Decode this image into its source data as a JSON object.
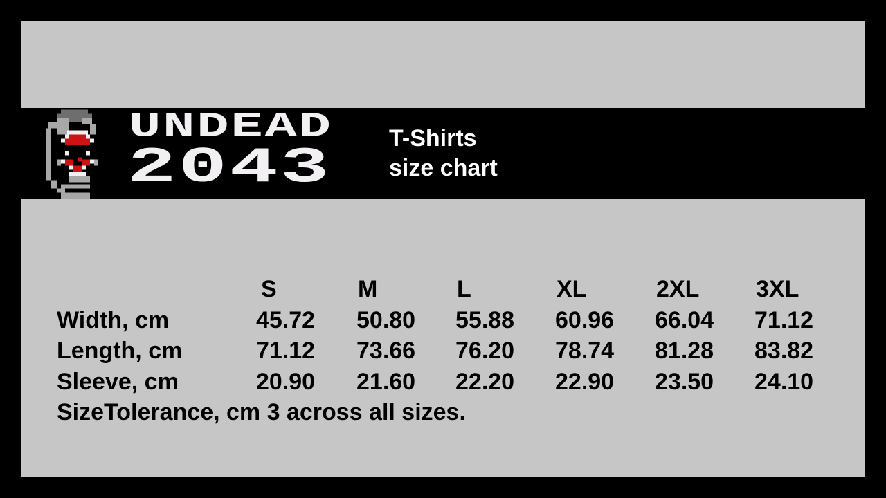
{
  "logo": {
    "line1": "UNDEAD",
    "line2": "2043",
    "colors": {
      "white": "#f2f0f2",
      "gray": "#a8a8a8",
      "dark_gray": "#6e6e6e",
      "red": "#cc1414"
    }
  },
  "title": {
    "line1": "T-Shirts",
    "line2": "size chart"
  },
  "table": {
    "columns": [
      "S",
      "M",
      "L",
      "XL",
      "2XL",
      "3XL"
    ],
    "rows": [
      {
        "label": "Width, cm",
        "values": [
          "45.72",
          "50.80",
          "55.88",
          "60.96",
          "66.04",
          "71.12"
        ]
      },
      {
        "label": "Length, cm",
        "values": [
          "71.12",
          "73.66",
          "76.20",
          "78.74",
          "81.28",
          "83.82"
        ]
      },
      {
        "label": "Sleeve, cm",
        "values": [
          "20.90",
          "21.60",
          "22.20",
          "22.90",
          "23.50",
          "24.10"
        ]
      }
    ],
    "note": "SizeTolerance, cm 3 across all sizes."
  },
  "colors": {
    "background": "#000000",
    "panel": "#c6c6c6"
  }
}
